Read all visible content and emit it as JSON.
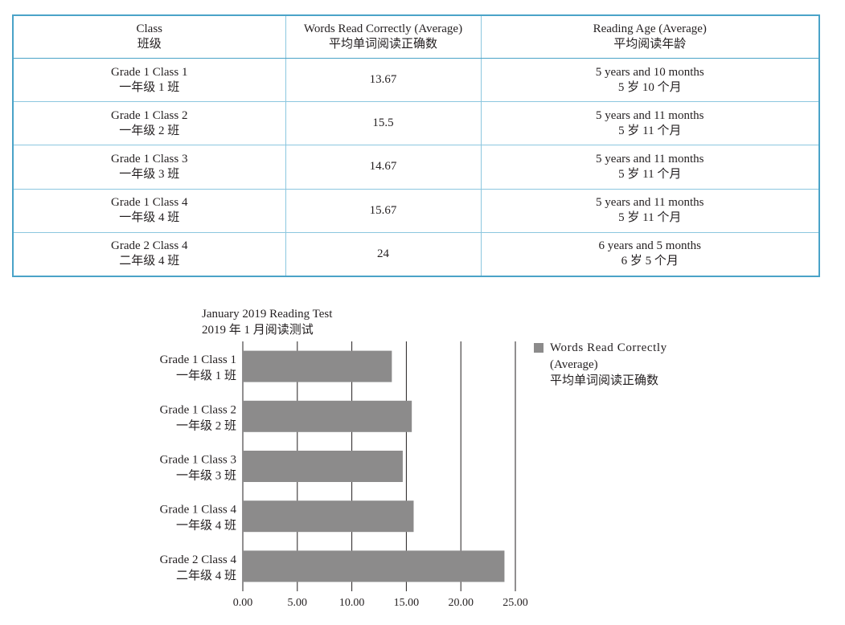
{
  "table": {
    "headers": [
      {
        "en": "Class",
        "zh": "班级"
      },
      {
        "en": "Words Read Correctly (Average)",
        "zh": "平均单词阅读正确数"
      },
      {
        "en": "Reading Age (Average)",
        "zh": "平均阅读年龄"
      }
    ],
    "rows": [
      {
        "class_en": "Grade 1 Class 1",
        "class_zh": "一年级 1 班",
        "words": "13.67",
        "age_en": "5 years and 10 months",
        "age_zh": "5 岁 10 个月"
      },
      {
        "class_en": "Grade 1 Class 2",
        "class_zh": "一年级 2 班",
        "words": "15.5",
        "age_en": "5 years and 11 months",
        "age_zh": "5 岁 11 个月"
      },
      {
        "class_en": "Grade 1 Class 3",
        "class_zh": "一年级 3 班",
        "words": "14.67",
        "age_en": "5 years and 11 months",
        "age_zh": "5 岁 11 个月"
      },
      {
        "class_en": "Grade 1 Class 4",
        "class_zh": "一年级 4 班",
        "words": "15.67",
        "age_en": "5 years and 11 months",
        "age_zh": "5 岁 11 个月"
      },
      {
        "class_en": "Grade 2 Class 4",
        "class_zh": "二年级 4 班",
        "words": "24",
        "age_en": "6 years and 5 months",
        "age_zh": "6 岁 5 个月"
      }
    ]
  },
  "chart_data": {
    "type": "bar",
    "orientation": "horizontal",
    "title": "January 2019 Reading Test",
    "subtitle": "2019 年 1 月阅读测试",
    "categories": [
      {
        "en": "Grade 1 Class 1",
        "zh": "一年级 1 班"
      },
      {
        "en": "Grade 1 Class 2",
        "zh": "一年级 2 班"
      },
      {
        "en": "Grade 1 Class 3",
        "zh": "一年级 3 班"
      },
      {
        "en": "Grade 1 Class 4",
        "zh": "一年级 4 班"
      },
      {
        "en": "Grade 2 Class 4",
        "zh": "二年级 4 班"
      }
    ],
    "series": [
      {
        "name": "Words Read Correctly (Average) 平均单词阅读正确数",
        "legend_lines": [
          "Words Read Correctly",
          "(Average)",
          "平均单词阅读正确数"
        ],
        "values": [
          13.67,
          15.5,
          14.67,
          15.67,
          24
        ],
        "color": "#8c8b8b"
      }
    ],
    "xlim": [
      0,
      25
    ],
    "xticks": [
      "0.00",
      "5.00",
      "10.00",
      "15.00",
      "20.00",
      "25.00"
    ],
    "grid": true,
    "legend": "right"
  }
}
